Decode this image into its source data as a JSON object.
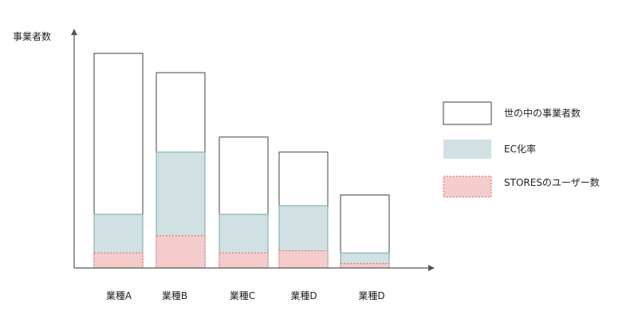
{
  "chart_data": {
    "type": "bar",
    "ylabel": "事業者数",
    "categories": [
      "業種A",
      "業種B",
      "業種C",
      "業種D",
      "業種D"
    ],
    "series": [
      {
        "name": "世の中の事業者数",
        "values": [
          100,
          91,
          61,
          54,
          34
        ]
      },
      {
        "name": "EC化率",
        "values": [
          25,
          54,
          25,
          29,
          7
        ]
      },
      {
        "name": "STORESのユーザー数",
        "values": [
          7,
          15,
          7,
          8,
          2
        ]
      }
    ],
    "ylim": [
      0,
      110
    ],
    "grid": false,
    "legend_position": "right",
    "colors": {
      "total_fill": "#ffffff",
      "total_stroke": "#404040",
      "ec_fill": "#d0e0e3",
      "ec_stroke": "#76a5af",
      "stores_fill": "#f4cccc",
      "stores_stroke": "#e06666",
      "axis": "#555555"
    }
  }
}
